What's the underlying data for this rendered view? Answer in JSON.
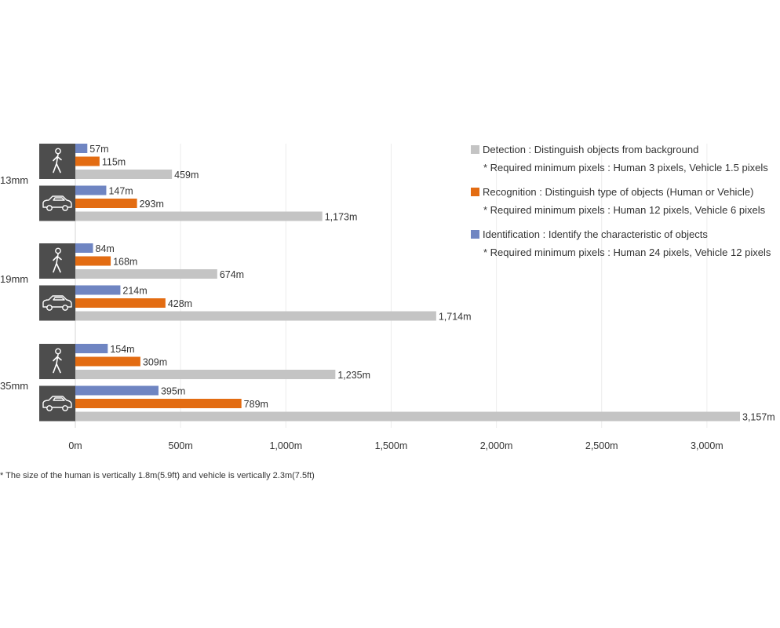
{
  "chart_data": {
    "type": "bar",
    "orientation": "horizontal",
    "groups": [
      "13mm",
      "19mm",
      "35mm"
    ],
    "targets": [
      "human",
      "vehicle"
    ],
    "target_icons": {
      "human": "pedestrian-icon",
      "vehicle": "car-icon"
    },
    "series": [
      {
        "key": "identification",
        "color": "#6f85c2",
        "values": {
          "13mm": {
            "human": 57,
            "vehicle": 147
          },
          "19mm": {
            "human": 84,
            "vehicle": 214
          },
          "35mm": {
            "human": 154,
            "vehicle": 395
          }
        },
        "labels": {
          "13mm": {
            "human": "57m",
            "vehicle": "147m"
          },
          "19mm": {
            "human": "84m",
            "vehicle": "214m"
          },
          "35mm": {
            "human": "154m",
            "vehicle": "395m"
          }
        }
      },
      {
        "key": "recognition",
        "color": "#e36c12",
        "values": {
          "13mm": {
            "human": 115,
            "vehicle": 293
          },
          "19mm": {
            "human": 168,
            "vehicle": 428
          },
          "35mm": {
            "human": 309,
            "vehicle": 789
          }
        },
        "labels": {
          "13mm": {
            "human": "115m",
            "vehicle": "293m"
          },
          "19mm": {
            "human": "168m",
            "vehicle": "428m"
          },
          "35mm": {
            "human": "309m",
            "vehicle": "789m"
          }
        }
      },
      {
        "key": "detection",
        "color": "#c4c4c4",
        "values": {
          "13mm": {
            "human": 459,
            "vehicle": 1173
          },
          "19mm": {
            "human": 674,
            "vehicle": 1714
          },
          "35mm": {
            "human": 1235,
            "vehicle": 3157
          }
        },
        "labels": {
          "13mm": {
            "human": "459m",
            "vehicle": "1,173m"
          },
          "19mm": {
            "human": "674m",
            "vehicle": "1,714m"
          },
          "35mm": {
            "human": "1,235m",
            "vehicle": "3,157m"
          }
        }
      }
    ],
    "xlim": [
      0,
      3157
    ],
    "x_ticks": [
      0,
      500,
      1000,
      1500,
      2000,
      2500,
      3000
    ],
    "x_tick_labels": [
      "0m",
      "500m",
      "1,000m",
      "1,500m",
      "2,000m",
      "2,500m",
      "3,000m"
    ],
    "grid": true,
    "legend_position": "top-right",
    "legend": [
      {
        "key": "detection",
        "color": "#c4c4c4",
        "label": "Detection : Distinguish objects from background",
        "note": "* Required minimum pixels : Human 3 pixels, Vehicle 1.5 pixels"
      },
      {
        "key": "recognition",
        "color": "#e36c12",
        "label": "Recognition : Distinguish type of objects (Human or Vehicle)",
        "note": "* Required minimum pixels : Human 12 pixels, Vehicle 6 pixels"
      },
      {
        "key": "identification",
        "color": "#6f85c2",
        "label": "Identification : Identify the characteristic of objects",
        "note": "* Required minimum pixels : Human 24 pixels, Vehicle 12 pixels"
      }
    ],
    "footnote": "* The size of the human is vertically 1.8m(5.9ft) and vehicle is vertically 2.3m(7.5ft)"
  }
}
